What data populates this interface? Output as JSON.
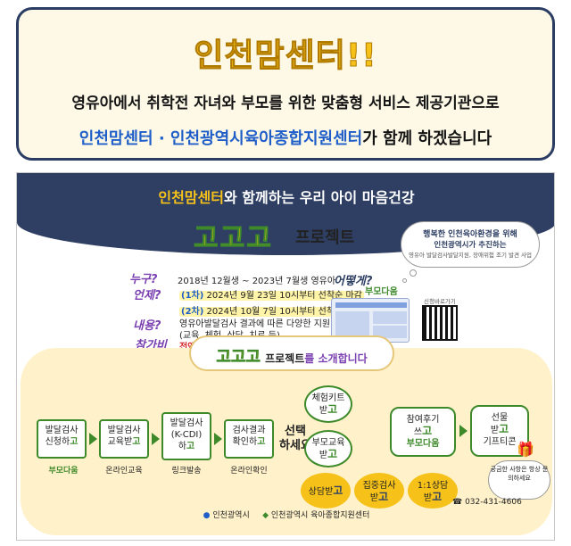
{
  "banner": {
    "title": "인천맘센터!!",
    "subtitle": "영유아에서 취학전 자녀와 부모를 위한 맞춤형 서비스 제공기관으로",
    "line3_part1": "인천맘센터 · 인천광역시육아종합지원센터",
    "line3_part2": "가 함께 하겠습니다"
  },
  "poster": {
    "head_highlight": "인천맘센터",
    "head_rest": "와 함께하는 우리 아이 마음건강",
    "gogogo": "고고고",
    "project": "프로젝트",
    "cloud": {
      "line1": "행복한 인천육아환경을 위해",
      "line2": "인천광역시가 추진하는",
      "line3": "영유아 발달검사발달지원, 장애위험 조기 발견 사업"
    },
    "who_q": "누구?",
    "who_a": "2018년 12월생 ~ 2023년 7월생 영유아",
    "when_q": "언제?",
    "when_1_prefix": "(1차)",
    "when_1_text": "2024년 9월 23일 10시부터 선착순 마감",
    "when_2_prefix": "(2차)",
    "when_2_text": "2024년 10월 7일 10시부터 선착순 마감",
    "what_q": "내용?",
    "what_a1": "영유아발달검사 결과에 따른 다양한 지원",
    "what_a2": "(교육, 체험, 상담, 치료 등)",
    "cost_q": "참가비",
    "cost_a": "전액 무료",
    "how_q": "어떻게?",
    "brand": "부모다움",
    "qr_label": "신청바로가기",
    "intro_go": "고고고",
    "intro_text_1": "프로젝트",
    "intro_text_2": "를 소개합니다",
    "steps": [
      {
        "l1": "발달검사",
        "l2": "신청하",
        "go": "고",
        "label": "부모다움"
      },
      {
        "l1": "발달검사",
        "l2": "교육받",
        "go": "고",
        "label": "온라인교육"
      },
      {
        "l1": "발달검사",
        "l2": "(K-CDI)",
        "l3": "하",
        "go": "고",
        "label": "링크발송"
      },
      {
        "l1": "검사결과",
        "l2": "확인하",
        "go": "고",
        "label": "온라인확인"
      }
    ],
    "choose_1": "선택",
    "choose_2": "하세요",
    "options": [
      {
        "l1": "체험키트",
        "l2": "받",
        "go": "고"
      },
      {
        "l1": "부모교육",
        "l2": "받",
        "go": "고"
      },
      {
        "l1": "상담받",
        "go": "고"
      },
      {
        "l1": "집중검사",
        "l2": "받",
        "go": "고"
      },
      {
        "l1": "1:1상담",
        "l2": "받",
        "go": "고"
      }
    ],
    "review_l1": "참여후기",
    "review_l2": "쓰",
    "review_go": "고",
    "review_brand": "부모다움",
    "gift_l1": "선물",
    "gift_l2": "받",
    "gift_go": "고",
    "gift_l3": "기프티콘",
    "speech": "궁금한 사항은 항상 문의하세요",
    "phone": "032-431-4606",
    "footer_1": "인천광역시",
    "footer_2": "인천광역시 육아종합지원센터"
  }
}
